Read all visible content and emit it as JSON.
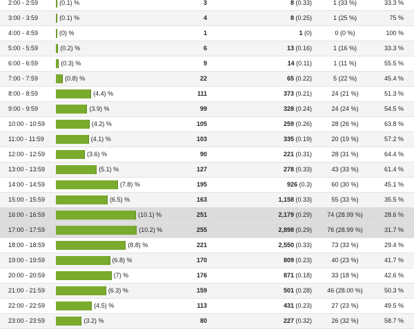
{
  "colors": {
    "bar": "#7aab2d",
    "highlight_row": "#dcdcdc",
    "alt_row": "#f4f4f4"
  },
  "rows": [
    {
      "time": "2:00 - 2:59",
      "pct_label": "(0.1) %",
      "pct": 0.1,
      "visits": "3",
      "pageviews": "8",
      "pv_avg": " (0.33)",
      "bounces": "1 (33 %)",
      "rate": "33.3 %"
    },
    {
      "time": "3:00 - 3:59",
      "pct_label": "(0.1) %",
      "pct": 0.1,
      "visits": "4",
      "pageviews": "8",
      "pv_avg": " (0.25)",
      "bounces": "1 (25 %)",
      "rate": "75 %"
    },
    {
      "time": "4:00 - 4:59",
      "pct_label": "(0) %",
      "pct": 0,
      "visits": "1",
      "pageviews": "1",
      "pv_avg": " (0)",
      "bounces": "0 (0 %)",
      "rate": "100 %"
    },
    {
      "time": "5:00 - 5:59",
      "pct_label": "(0.2) %",
      "pct": 0.2,
      "visits": "6",
      "pageviews": "13",
      "pv_avg": " (0.16)",
      "bounces": "1 (16 %)",
      "rate": "33.3 %"
    },
    {
      "time": "6:00 - 6:59",
      "pct_label": "(0.3) %",
      "pct": 0.3,
      "visits": "9",
      "pageviews": "14",
      "pv_avg": " (0.11)",
      "bounces": "1 (11 %)",
      "rate": "55.5 %"
    },
    {
      "time": "7:00 - 7:59",
      "pct_label": "(0.8) %",
      "pct": 0.8,
      "visits": "22",
      "pageviews": "65",
      "pv_avg": " (0.22)",
      "bounces": "5 (22 %)",
      "rate": "45.4 %"
    },
    {
      "time": "8:00 - 8:59",
      "pct_label": "(4.4) %",
      "pct": 4.4,
      "visits": "111",
      "pageviews": "373",
      "pv_avg": " (0.21)",
      "bounces": "24 (21 %)",
      "rate": "51.3 %"
    },
    {
      "time": "9:00 - 9:59",
      "pct_label": "(3.9) %",
      "pct": 3.9,
      "visits": "99",
      "pageviews": "328",
      "pv_avg": " (0.24)",
      "bounces": "24 (24 %)",
      "rate": "54.5 %"
    },
    {
      "time": "10:00 - 10:59",
      "pct_label": "(4.2) %",
      "pct": 4.2,
      "visits": "105",
      "pageviews": "259",
      "pv_avg": " (0.26)",
      "bounces": "28 (26 %)",
      "rate": "63.8 %"
    },
    {
      "time": "11:00 - 11:59",
      "pct_label": "(4.1) %",
      "pct": 4.1,
      "visits": "103",
      "pageviews": "335",
      "pv_avg": " (0.19)",
      "bounces": "20 (19 %)",
      "rate": "57.2 %"
    },
    {
      "time": "12:00 - 12:59",
      "pct_label": "(3.6) %",
      "pct": 3.6,
      "visits": "90",
      "pageviews": "221",
      "pv_avg": " (0.31)",
      "bounces": "28 (31 %)",
      "rate": "64.4 %"
    },
    {
      "time": "13:00 - 13:59",
      "pct_label": "(5.1) %",
      "pct": 5.1,
      "visits": "127",
      "pageviews": "278",
      "pv_avg": " (0.33)",
      "bounces": "43 (33 %)",
      "rate": "61.4 %"
    },
    {
      "time": "14:00 - 14:59",
      "pct_label": "(7.8) %",
      "pct": 7.8,
      "visits": "195",
      "pageviews": "926",
      "pv_avg": " (0.3)",
      "bounces": "60 (30 %)",
      "rate": "45.1 %"
    },
    {
      "time": "15:00 - 15:59",
      "pct_label": "(6.5) %",
      "pct": 6.5,
      "visits": "163",
      "pageviews": "1,158",
      "pv_avg": " (0.33)",
      "bounces": "55 (33 %)",
      "rate": "35.5 %"
    },
    {
      "time": "16:00 - 16:59",
      "pct_label": "(10.1) %",
      "pct": 10.1,
      "visits": "251",
      "pageviews": "2,179",
      "pv_avg": " (0.29)",
      "bounces": "74 (28.99 %)",
      "rate": "28.6 %",
      "highlight": true
    },
    {
      "time": "17:00 - 17:59",
      "pct_label": "(10.2) %",
      "pct": 10.2,
      "visits": "255",
      "pageviews": "2,898",
      "pv_avg": " (0.29)",
      "bounces": "76 (28.99 %)",
      "rate": "31.7 %",
      "highlight": true
    },
    {
      "time": "18:00 - 18:59",
      "pct_label": "(8.8) %",
      "pct": 8.8,
      "visits": "221",
      "pageviews": "2,550",
      "pv_avg": " (0.33)",
      "bounces": "73 (33 %)",
      "rate": "29.4 %"
    },
    {
      "time": "19:00 - 19:59",
      "pct_label": "(6.8) %",
      "pct": 6.8,
      "visits": "170",
      "pageviews": "809",
      "pv_avg": " (0.23)",
      "bounces": "40 (23 %)",
      "rate": "41.7 %"
    },
    {
      "time": "20:00 - 20:59",
      "pct_label": "(7) %",
      "pct": 7,
      "visits": "176",
      "pageviews": "871",
      "pv_avg": " (0.18)",
      "bounces": "33 (18 %)",
      "rate": "42.6 %"
    },
    {
      "time": "21:00 - 21:59",
      "pct_label": "(6.3) %",
      "pct": 6.3,
      "visits": "159",
      "pageviews": "501",
      "pv_avg": " (0.28)",
      "bounces": "46 (28.00 %)",
      "rate": "50.3 %"
    },
    {
      "time": "22:00 - 22:59",
      "pct_label": "(4.5) %",
      "pct": 4.5,
      "visits": "113",
      "pageviews": "431",
      "pv_avg": " (0.23)",
      "bounces": "27 (23 %)",
      "rate": "49.5 %"
    },
    {
      "time": "23:00 - 23:59",
      "pct_label": "(3.2) %",
      "pct": 3.2,
      "visits": "80",
      "pageviews": "227",
      "pv_avg": " (0.32)",
      "bounces": "26 (32 %)",
      "rate": "58.7 %"
    }
  ]
}
